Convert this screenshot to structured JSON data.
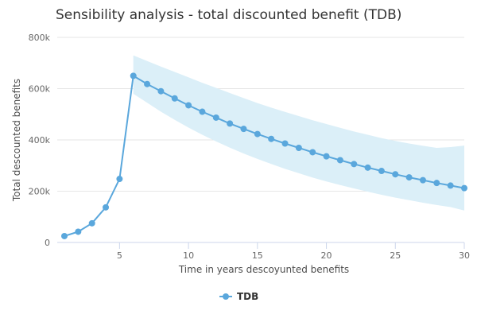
{
  "chart_data": {
    "type": "line",
    "title": "Sensibility analysis - total discounted benefit (TDB)",
    "xlabel": "Time in years descoyunted benefits",
    "ylabel": "Total descounted benefits",
    "xlim": [
      1,
      30
    ],
    "ylim": [
      0,
      800000
    ],
    "xticks": [
      5,
      10,
      15,
      20,
      25,
      30
    ],
    "xtick_labels": [
      "5",
      "10",
      "15",
      "20",
      "25",
      "30"
    ],
    "yticks": [
      0,
      200000,
      400000,
      600000,
      800000
    ],
    "ytick_labels": [
      "0",
      "200k",
      "400k",
      "600k",
      "800k"
    ],
    "grid": true,
    "legend_position": "bottom-center",
    "series": [
      {
        "name": "TDB",
        "color": "#5aa7dc",
        "x": [
          1,
          2,
          3,
          4,
          5,
          6,
          7,
          8,
          9,
          10,
          11,
          12,
          13,
          14,
          15,
          16,
          17,
          18,
          19,
          20,
          21,
          22,
          23,
          24,
          25,
          26,
          27,
          28,
          29,
          30
        ],
        "values": [
          25000,
          42000,
          75000,
          137000,
          248000,
          650000,
          618000,
          590000,
          562000,
          535000,
          510000,
          487000,
          464000,
          443000,
          423000,
          404000,
          386000,
          369000,
          352000,
          336000,
          321000,
          306000,
          292000,
          279000,
          266000,
          254000,
          243000,
          232000,
          222000,
          212000
        ]
      }
    ],
    "range": {
      "color": "#dbeff8",
      "x": [
        6,
        7,
        8,
        9,
        10,
        11,
        12,
        13,
        14,
        15,
        16,
        17,
        18,
        19,
        20,
        21,
        22,
        23,
        24,
        25,
        26,
        27,
        28,
        29,
        30
      ],
      "low": [
        580000,
        545000,
        510000,
        478000,
        448000,
        420000,
        394000,
        370000,
        347000,
        326000,
        306000,
        287000,
        270000,
        253000,
        238000,
        224000,
        211000,
        198000,
        186000,
        175000,
        165000,
        155000,
        146000,
        138000,
        125000
      ],
      "high": [
        730000,
        708000,
        686000,
        665000,
        644000,
        623000,
        603000,
        583000,
        563000,
        544000,
        526000,
        509000,
        493000,
        477000,
        462000,
        447000,
        433000,
        420000,
        407000,
        396000,
        386000,
        377000,
        369000,
        372000,
        378000
      ]
    }
  }
}
